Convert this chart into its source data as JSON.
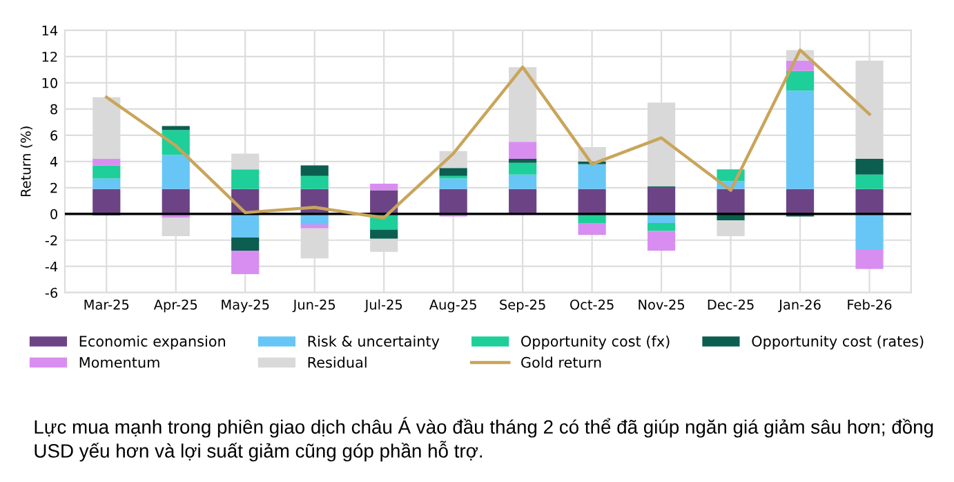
{
  "chart_data": {
    "type": "bar",
    "stacked": true,
    "ylabel": "Return (%)",
    "categories": [
      "Mar-25",
      "Apr-25",
      "May-25",
      "Jun-25",
      "Jul-25",
      "Aug-25",
      "Sep-25",
      "Oct-25",
      "Nov-25",
      "Dec-25",
      "Jan-26",
      "Feb-26"
    ],
    "series": [
      {
        "name": "Economic expansion",
        "color": "#6c4486",
        "values": [
          1.9,
          1.9,
          1.9,
          1.9,
          1.8,
          1.9,
          1.9,
          1.9,
          2.0,
          1.9,
          1.9,
          1.9
        ]
      },
      {
        "name": "Risk & uncertainty",
        "color": "#67c6f5",
        "values": [
          0.8,
          2.6,
          -1.8,
          -0.8,
          null,
          0.8,
          1.1,
          1.9,
          -0.7,
          0.6,
          7.5,
          -2.7
        ]
      },
      {
        "name": "Opportunity cost (fx)",
        "color": "#1ecf99",
        "values": [
          1.0,
          1.9,
          1.5,
          1.0,
          -1.2,
          0.2,
          0.9,
          -0.7,
          -0.6,
          0.9,
          1.5,
          1.1
        ]
      },
      {
        "name": "Opportunity cost (rates)",
        "color": "#0b5e50",
        "values": [
          -0.1,
          0.3,
          -1.0,
          0.8,
          -0.7,
          0.6,
          0.3,
          0.2,
          0.1,
          -0.5,
          -0.2,
          1.2
        ]
      },
      {
        "name": "Momentum",
        "color": "#d88ef0",
        "values": [
          0.5,
          -0.3,
          -1.8,
          -0.3,
          0.5,
          -0.2,
          1.3,
          -0.9,
          -1.5,
          null,
          0.8,
          -1.5
        ]
      },
      {
        "name": "Residual",
        "color": "#d9d9d9",
        "values": [
          4.7,
          -1.4,
          1.2,
          -2.3,
          -1.0,
          1.3,
          5.7,
          1.1,
          6.4,
          -1.2,
          0.8,
          7.5
        ]
      },
      {
        "name": "Gold return",
        "type": "line",
        "color": "#c9a55a",
        "values": [
          8.9,
          5.2,
          0.1,
          0.5,
          -0.3,
          4.6,
          11.2,
          3.8,
          5.8,
          1.8,
          12.5,
          7.6
        ]
      }
    ],
    "ylim": [
      -6,
      14
    ],
    "yticks": [
      -6,
      -4,
      -2,
      0,
      2,
      4,
      6,
      8,
      10,
      12,
      14
    ],
    "grid": true,
    "legend": "bottom",
    "annotations": [
      "Lực mua mạnh trong phiên giao dịch châu Á vào đầu tháng 2 có thể đã giúp ngăn giá giảm sâu hơn; đồng USD yếu hơn và lợi suất giảm cũng góp phần hỗ trợ."
    ]
  }
}
